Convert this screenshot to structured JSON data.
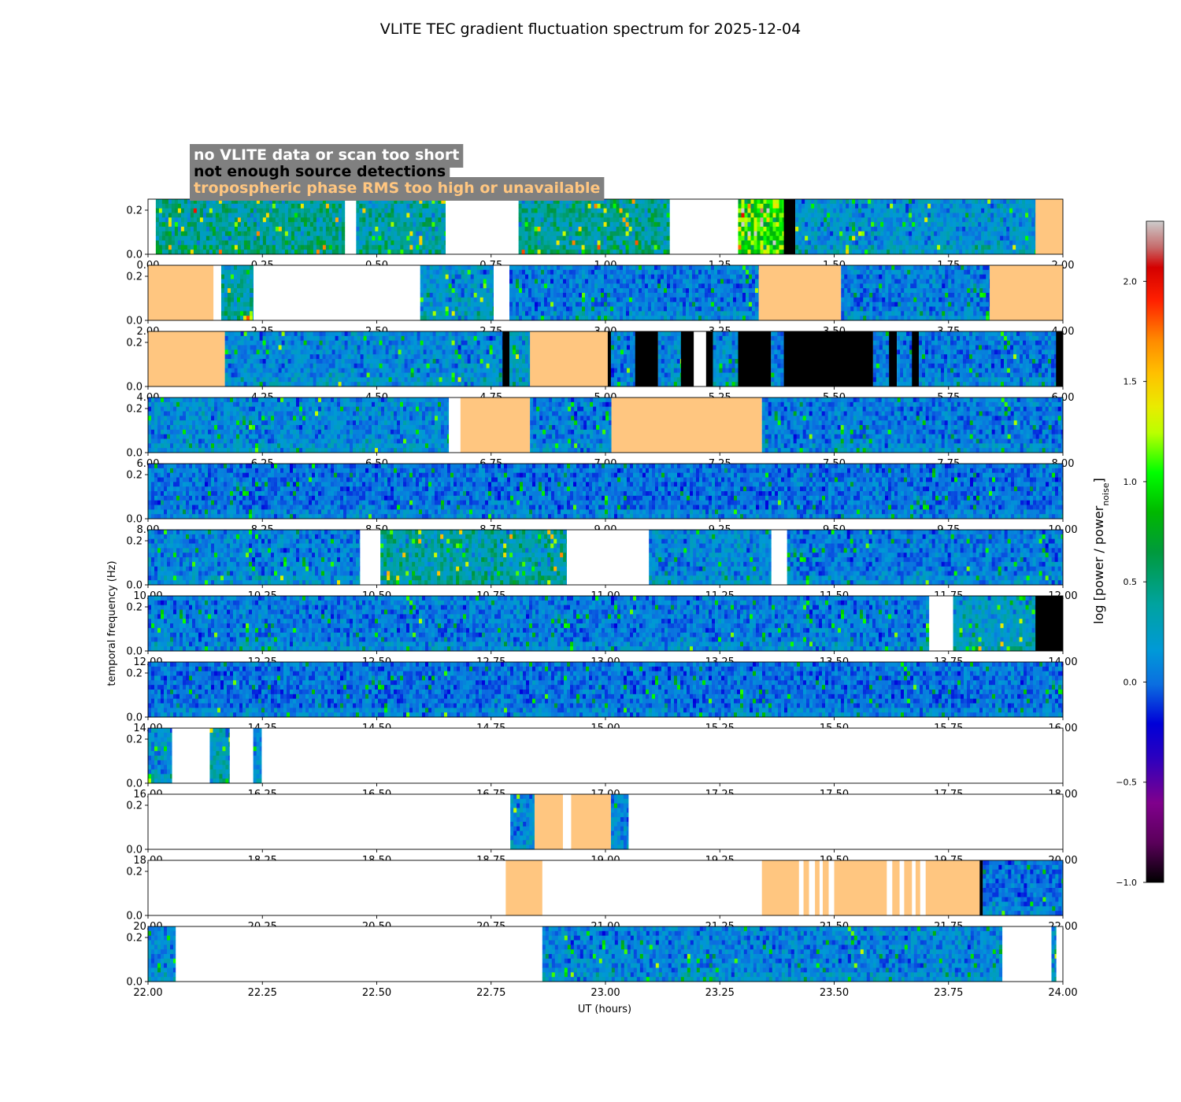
{
  "chart_data": {
    "type": "heatmap",
    "title": "VLITE TEC gradient fluctuation spectrum for 2025-12-04",
    "xlabel": "UT (hours)",
    "ylabel": "temporal frequency (Hz)",
    "ylim": [
      0,
      0.25
    ],
    "yticks": [
      0.0,
      0.2
    ],
    "colorbar": {
      "label_main": "log [power / power",
      "label_sub": "noise",
      "label_end": "]",
      "range": [
        -1.0,
        2.3
      ],
      "ticks": [
        -1.0,
        -0.5,
        0.0,
        0.5,
        1.0,
        1.5,
        2.0
      ]
    },
    "legend": [
      {
        "label": "no VLITE data or scan too short",
        "color": "#ffffff"
      },
      {
        "label": "not enough source detections",
        "color": "#000000"
      },
      {
        "label": "tropospheric phase RMS too high or unavailable",
        "color": "#ffc680"
      }
    ],
    "colors": {
      "no_data": "#ffffff",
      "too_few_detections": "#000000",
      "tropo_flag": "#ffc680",
      "legend_box": "#808080"
    },
    "panels": [
      {
        "start": 0,
        "end": 2,
        "xticks": [
          0.0,
          0.25,
          0.5,
          0.75,
          1.0,
          1.25,
          1.5,
          1.75,
          2.0
        ],
        "segments": [
          {
            "t0": 0.0,
            "t1": 0.017,
            "kind": "nodata"
          },
          {
            "t0": 0.017,
            "t1": 0.43,
            "kind": "data",
            "level": 0.35
          },
          {
            "t0": 0.43,
            "t1": 0.455,
            "kind": "nodata"
          },
          {
            "t0": 0.455,
            "t1": 0.65,
            "kind": "data",
            "level": 0.3
          },
          {
            "t0": 0.65,
            "t1": 0.81,
            "kind": "nodata"
          },
          {
            "t0": 0.81,
            "t1": 1.14,
            "kind": "data",
            "level": 0.35
          },
          {
            "t0": 1.14,
            "t1": 1.29,
            "kind": "nodata"
          },
          {
            "t0": 1.29,
            "t1": 1.39,
            "kind": "data",
            "level": 0.9
          },
          {
            "t0": 1.39,
            "t1": 1.415,
            "kind": "detect"
          },
          {
            "t0": 1.415,
            "t1": 1.94,
            "kind": "data",
            "level": 0.15
          },
          {
            "t0": 1.94,
            "t1": 2.0,
            "kind": "tropo"
          }
        ]
      },
      {
        "start": 2,
        "end": 4,
        "xticks": [
          2.0,
          2.25,
          2.5,
          2.75,
          3.0,
          3.25,
          3.5,
          3.75,
          4.0
        ],
        "segments": [
          {
            "t0": 2.0,
            "t1": 2.143,
            "kind": "tropo"
          },
          {
            "t0": 2.143,
            "t1": 2.16,
            "kind": "nodata"
          },
          {
            "t0": 2.16,
            "t1": 2.23,
            "kind": "data",
            "level": 0.3
          },
          {
            "t0": 2.23,
            "t1": 2.595,
            "kind": "nodata"
          },
          {
            "t0": 2.595,
            "t1": 2.755,
            "kind": "data",
            "level": 0.15
          },
          {
            "t0": 2.755,
            "t1": 2.79,
            "kind": "nodata"
          },
          {
            "t0": 2.79,
            "t1": 3.335,
            "kind": "data",
            "level": 0.05
          },
          {
            "t0": 3.335,
            "t1": 3.515,
            "kind": "tropo"
          },
          {
            "t0": 3.515,
            "t1": 3.84,
            "kind": "data",
            "level": 0.05
          },
          {
            "t0": 3.84,
            "t1": 4.0,
            "kind": "tropo"
          }
        ]
      },
      {
        "start": 4,
        "end": 6,
        "xticks": [
          4.0,
          4.25,
          4.5,
          4.75,
          5.0,
          5.25,
          5.5,
          5.75,
          6.0
        ],
        "segments": [
          {
            "t0": 4.0,
            "t1": 4.168,
            "kind": "tropo"
          },
          {
            "t0": 4.168,
            "t1": 4.775,
            "kind": "data",
            "level": 0.1
          },
          {
            "t0": 4.775,
            "t1": 4.79,
            "kind": "detect"
          },
          {
            "t0": 4.79,
            "t1": 4.835,
            "kind": "data",
            "level": 0.2
          },
          {
            "t0": 4.835,
            "t1": 5.005,
            "kind": "tropo"
          },
          {
            "t0": 5.005,
            "t1": 5.012,
            "kind": "detect"
          },
          {
            "t0": 5.012,
            "t1": 5.065,
            "kind": "data",
            "level": 0.05
          },
          {
            "t0": 5.065,
            "t1": 5.115,
            "kind": "detect"
          },
          {
            "t0": 5.115,
            "t1": 5.165,
            "kind": "data",
            "level": 0.1
          },
          {
            "t0": 5.165,
            "t1": 5.193,
            "kind": "detect"
          },
          {
            "t0": 5.193,
            "t1": 5.22,
            "kind": "nodata"
          },
          {
            "t0": 5.22,
            "t1": 5.235,
            "kind": "detect"
          },
          {
            "t0": 5.235,
            "t1": 5.29,
            "kind": "data",
            "level": 0.1
          },
          {
            "t0": 5.29,
            "t1": 5.362,
            "kind": "detect"
          },
          {
            "t0": 5.362,
            "t1": 5.39,
            "kind": "data",
            "level": 0.05
          },
          {
            "t0": 5.39,
            "t1": 5.585,
            "kind": "detect"
          },
          {
            "t0": 5.585,
            "t1": 5.62,
            "kind": "data",
            "level": 0.05
          },
          {
            "t0": 5.62,
            "t1": 5.637,
            "kind": "detect"
          },
          {
            "t0": 5.637,
            "t1": 5.67,
            "kind": "data",
            "level": 0.05
          },
          {
            "t0": 5.67,
            "t1": 5.685,
            "kind": "detect"
          },
          {
            "t0": 5.685,
            "t1": 5.985,
            "kind": "data",
            "level": 0.05
          },
          {
            "t0": 5.985,
            "t1": 6.0,
            "kind": "detect"
          }
        ]
      },
      {
        "start": 6,
        "end": 8,
        "xticks": [
          6.0,
          6.25,
          6.5,
          6.75,
          7.0,
          7.25,
          7.5,
          7.75,
          8.0
        ],
        "segments": [
          {
            "t0": 6.0,
            "t1": 6.657,
            "kind": "data",
            "level": 0.1
          },
          {
            "t0": 6.657,
            "t1": 6.683,
            "kind": "nodata"
          },
          {
            "t0": 6.683,
            "t1": 6.835,
            "kind": "tropo"
          },
          {
            "t0": 6.835,
            "t1": 7.013,
            "kind": "data",
            "level": 0.05
          },
          {
            "t0": 7.013,
            "t1": 7.342,
            "kind": "tropo"
          },
          {
            "t0": 7.342,
            "t1": 8.0,
            "kind": "data",
            "level": 0.05
          }
        ]
      },
      {
        "start": 8,
        "end": 10,
        "xticks": [
          8.0,
          8.25,
          8.5,
          8.75,
          9.0,
          9.25,
          9.5,
          9.75,
          10.0
        ],
        "segments": [
          {
            "t0": 8.0,
            "t1": 10.0,
            "kind": "data",
            "level": 0.02
          }
        ]
      },
      {
        "start": 10,
        "end": 12,
        "xticks": [
          10.0,
          10.25,
          10.5,
          10.75,
          11.0,
          11.25,
          11.5,
          11.75,
          12.0
        ],
        "segments": [
          {
            "t0": 10.0,
            "t1": 10.463,
            "kind": "data",
            "level": 0.08
          },
          {
            "t0": 10.463,
            "t1": 10.508,
            "kind": "nodata"
          },
          {
            "t0": 10.508,
            "t1": 10.915,
            "kind": "data",
            "level": 0.3
          },
          {
            "t0": 10.915,
            "t1": 11.095,
            "kind": "nodata"
          },
          {
            "t0": 11.095,
            "t1": 11.362,
            "kind": "data",
            "level": 0.1
          },
          {
            "t0": 11.362,
            "t1": 11.397,
            "kind": "nodata"
          },
          {
            "t0": 11.397,
            "t1": 12.0,
            "kind": "data",
            "level": 0.05
          }
        ]
      },
      {
        "start": 12,
        "end": 14,
        "xticks": [
          12.0,
          12.25,
          12.5,
          12.75,
          13.0,
          13.25,
          13.5,
          13.75,
          14.0
        ],
        "segments": [
          {
            "t0": 12.0,
            "t1": 13.707,
            "kind": "data",
            "level": 0.05
          },
          {
            "t0": 13.707,
            "t1": 13.76,
            "kind": "nodata"
          },
          {
            "t0": 13.76,
            "t1": 13.94,
            "kind": "data",
            "level": 0.2
          },
          {
            "t0": 13.94,
            "t1": 14.0,
            "kind": "detect"
          }
        ]
      },
      {
        "start": 14,
        "end": 16,
        "xticks": [
          14.0,
          14.25,
          14.5,
          14.75,
          15.0,
          15.25,
          15.5,
          15.75,
          16.0
        ],
        "segments": [
          {
            "t0": 14.0,
            "t1": 16.0,
            "kind": "data",
            "level": 0.02
          }
        ]
      },
      {
        "start": 16,
        "end": 18,
        "xticks": [
          16.0,
          16.25,
          16.5,
          16.75,
          17.0,
          17.25,
          17.5,
          17.75,
          18.0
        ],
        "segments": [
          {
            "t0": 16.0,
            "t1": 16.052,
            "kind": "data",
            "level": 0.15
          },
          {
            "t0": 16.052,
            "t1": 16.135,
            "kind": "nodata"
          },
          {
            "t0": 16.135,
            "t1": 16.178,
            "kind": "data",
            "level": 0.25
          },
          {
            "t0": 16.178,
            "t1": 16.23,
            "kind": "nodata"
          },
          {
            "t0": 16.23,
            "t1": 16.248,
            "kind": "data",
            "level": 0.1
          },
          {
            "t0": 16.248,
            "t1": 18.0,
            "kind": "nodata"
          }
        ]
      },
      {
        "start": 18,
        "end": 20,
        "xticks": [
          18.0,
          18.25,
          18.5,
          18.75,
          19.0,
          19.25,
          19.5,
          19.75,
          20.0
        ],
        "segments": [
          {
            "t0": 18.0,
            "t1": 18.792,
            "kind": "nodata"
          },
          {
            "t0": 18.792,
            "t1": 18.845,
            "kind": "data",
            "level": 0.1
          },
          {
            "t0": 18.845,
            "t1": 18.907,
            "kind": "tropo"
          },
          {
            "t0": 18.907,
            "t1": 18.925,
            "kind": "nodata"
          },
          {
            "t0": 18.925,
            "t1": 19.012,
            "kind": "tropo"
          },
          {
            "t0": 19.012,
            "t1": 19.05,
            "kind": "data",
            "level": 0.1
          },
          {
            "t0": 19.05,
            "t1": 20.0,
            "kind": "nodata"
          }
        ]
      },
      {
        "start": 20,
        "end": 22,
        "xticks": [
          20.0,
          20.25,
          20.5,
          20.75,
          21.0,
          21.25,
          21.5,
          21.75,
          22.0
        ],
        "segments": [
          {
            "t0": 20.0,
            "t1": 20.782,
            "kind": "nodata"
          },
          {
            "t0": 20.782,
            "t1": 20.862,
            "kind": "tropo"
          },
          {
            "t0": 20.862,
            "t1": 21.342,
            "kind": "nodata"
          },
          {
            "t0": 21.342,
            "t1": 21.423,
            "kind": "tropo"
          },
          {
            "t0": 21.423,
            "t1": 21.433,
            "kind": "nodata"
          },
          {
            "t0": 21.433,
            "t1": 21.445,
            "kind": "tropo"
          },
          {
            "t0": 21.445,
            "t1": 21.458,
            "kind": "nodata"
          },
          {
            "t0": 21.458,
            "t1": 21.468,
            "kind": "tropo"
          },
          {
            "t0": 21.468,
            "t1": 21.475,
            "kind": "nodata"
          },
          {
            "t0": 21.475,
            "t1": 21.488,
            "kind": "tropo"
          },
          {
            "t0": 21.488,
            "t1": 21.5,
            "kind": "nodata"
          },
          {
            "t0": 21.5,
            "t1": 21.615,
            "kind": "tropo"
          },
          {
            "t0": 21.615,
            "t1": 21.627,
            "kind": "nodata"
          },
          {
            "t0": 21.627,
            "t1": 21.643,
            "kind": "tropo"
          },
          {
            "t0": 21.643,
            "t1": 21.653,
            "kind": "nodata"
          },
          {
            "t0": 21.653,
            "t1": 21.67,
            "kind": "tropo"
          },
          {
            "t0": 21.67,
            "t1": 21.678,
            "kind": "nodata"
          },
          {
            "t0": 21.678,
            "t1": 21.688,
            "kind": "tropo"
          },
          {
            "t0": 21.688,
            "t1": 21.7,
            "kind": "nodata"
          },
          {
            "t0": 21.7,
            "t1": 21.818,
            "kind": "tropo"
          },
          {
            "t0": 21.818,
            "t1": 21.825,
            "kind": "detect"
          },
          {
            "t0": 21.825,
            "t1": 22.0,
            "kind": "data",
            "level": 0.02
          }
        ]
      },
      {
        "start": 22,
        "end": 24,
        "xticks": [
          22.0,
          22.25,
          22.5,
          22.75,
          23.0,
          23.25,
          23.5,
          23.75,
          24.0
        ],
        "segments": [
          {
            "t0": 22.0,
            "t1": 22.06,
            "kind": "data",
            "level": 0.1
          },
          {
            "t0": 22.06,
            "t1": 22.862,
            "kind": "nodata"
          },
          {
            "t0": 22.862,
            "t1": 23.867,
            "kind": "data",
            "level": 0.08
          },
          {
            "t0": 23.867,
            "t1": 23.975,
            "kind": "nodata"
          },
          {
            "t0": 23.975,
            "t1": 23.985,
            "kind": "data",
            "level": 0.15
          },
          {
            "t0": 23.985,
            "t1": 24.0,
            "kind": "nodata"
          }
        ]
      }
    ]
  }
}
